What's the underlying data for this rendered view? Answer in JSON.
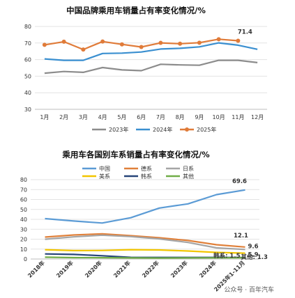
{
  "watermark": "公众号 · 百年汽车",
  "chart_data": [
    {
      "type": "line",
      "title": "中国品牌乘用车销量占有率变化情况/%",
      "categories": [
        "1月",
        "2月",
        "3月",
        "4月",
        "5月",
        "6月",
        "7月",
        "8月",
        "9月",
        "10月",
        "11月",
        "12月"
      ],
      "ylim": [
        30,
        80
      ],
      "yticks": [
        30,
        40,
        50,
        60,
        70,
        80
      ],
      "grid": "horizontal",
      "legend_position": "bottom",
      "series": [
        {
          "name": "2023年",
          "color": "#8c8c8c",
          "marker": "none",
          "values": [
            51.8,
            52.8,
            52.3,
            55.2,
            53.8,
            53.3,
            57.2,
            56.8,
            56.6,
            59.6,
            59.6,
            58.2
          ]
        },
        {
          "name": "2024年",
          "color": "#3a8fd0",
          "marker": "none",
          "values": [
            60.4,
            59.6,
            59.6,
            63.7,
            63.9,
            64.6,
            66.4,
            66.8,
            67.7,
            70.1,
            68.7,
            66.2
          ]
        },
        {
          "name": "2025年",
          "color": "#e07b39",
          "marker": "circle",
          "values": [
            68.9,
            70.8,
            66.1,
            70.9,
            69.2,
            67.6,
            70.1,
            69.6,
            70.2,
            72.3,
            71.4,
            null
          ]
        }
      ],
      "data_labels": [
        {
          "series": "2025年",
          "index": 10,
          "text": "71.4"
        }
      ]
    },
    {
      "type": "line",
      "title": "乘用车各国别车系销量占有率变化情况/%",
      "categories": [
        "2018年",
        "2019年",
        "2020年",
        "2021年",
        "2022年",
        "2023年",
        "2024年",
        "2025年1-11月"
      ],
      "ylim": [
        0,
        80
      ],
      "yticks": [
        0,
        10,
        20,
        30,
        40,
        50,
        60,
        70,
        80
      ],
      "grid": "horizontal",
      "legend_position": "top",
      "series": [
        {
          "name": "中国",
          "color": "#5b9bd5",
          "values": [
            40.7,
            38.3,
            36.3,
            41.6,
            51.4,
            55.6,
            64.9,
            69.6
          ]
        },
        {
          "name": "德系",
          "color": "#e0803a",
          "values": [
            22.1,
            24.2,
            25.4,
            23.5,
            21.4,
            18.7,
            14.4,
            12.1
          ]
        },
        {
          "name": "日系",
          "color": "#a5a5a5",
          "values": [
            19.9,
            22.3,
            24.0,
            22.6,
            20.3,
            16.7,
            11.2,
            9.6
          ]
        },
        {
          "name": "美系",
          "color": "#f2c500",
          "values": [
            9.4,
            8.5,
            8.6,
            9.4,
            9.1,
            8.1,
            6.7,
            5.9
          ]
        },
        {
          "name": "韩系",
          "color": "#264478",
          "values": [
            5.1,
            4.6,
            3.3,
            1.7,
            1.6,
            1.6,
            1.6,
            1.5
          ]
        },
        {
          "name": "其他",
          "color": "#70ad47",
          "values": [
            1.8,
            1.4,
            1.3,
            1.1,
            1.0,
            1.1,
            1.2,
            1.3
          ]
        }
      ],
      "data_labels": [
        {
          "series": "中国",
          "index": 7,
          "text": "69.6"
        },
        {
          "series": "德系",
          "index": 7,
          "text": "12.1"
        },
        {
          "series": "日系",
          "index": 7,
          "text": "9.6"
        },
        {
          "series": "美系",
          "index": 7,
          "text": "5.9"
        },
        {
          "series": "韩系",
          "index": 7,
          "text": "韩系: 1.5"
        },
        {
          "series": "其他",
          "index": 7,
          "text": "其他: 1.3"
        }
      ]
    }
  ]
}
